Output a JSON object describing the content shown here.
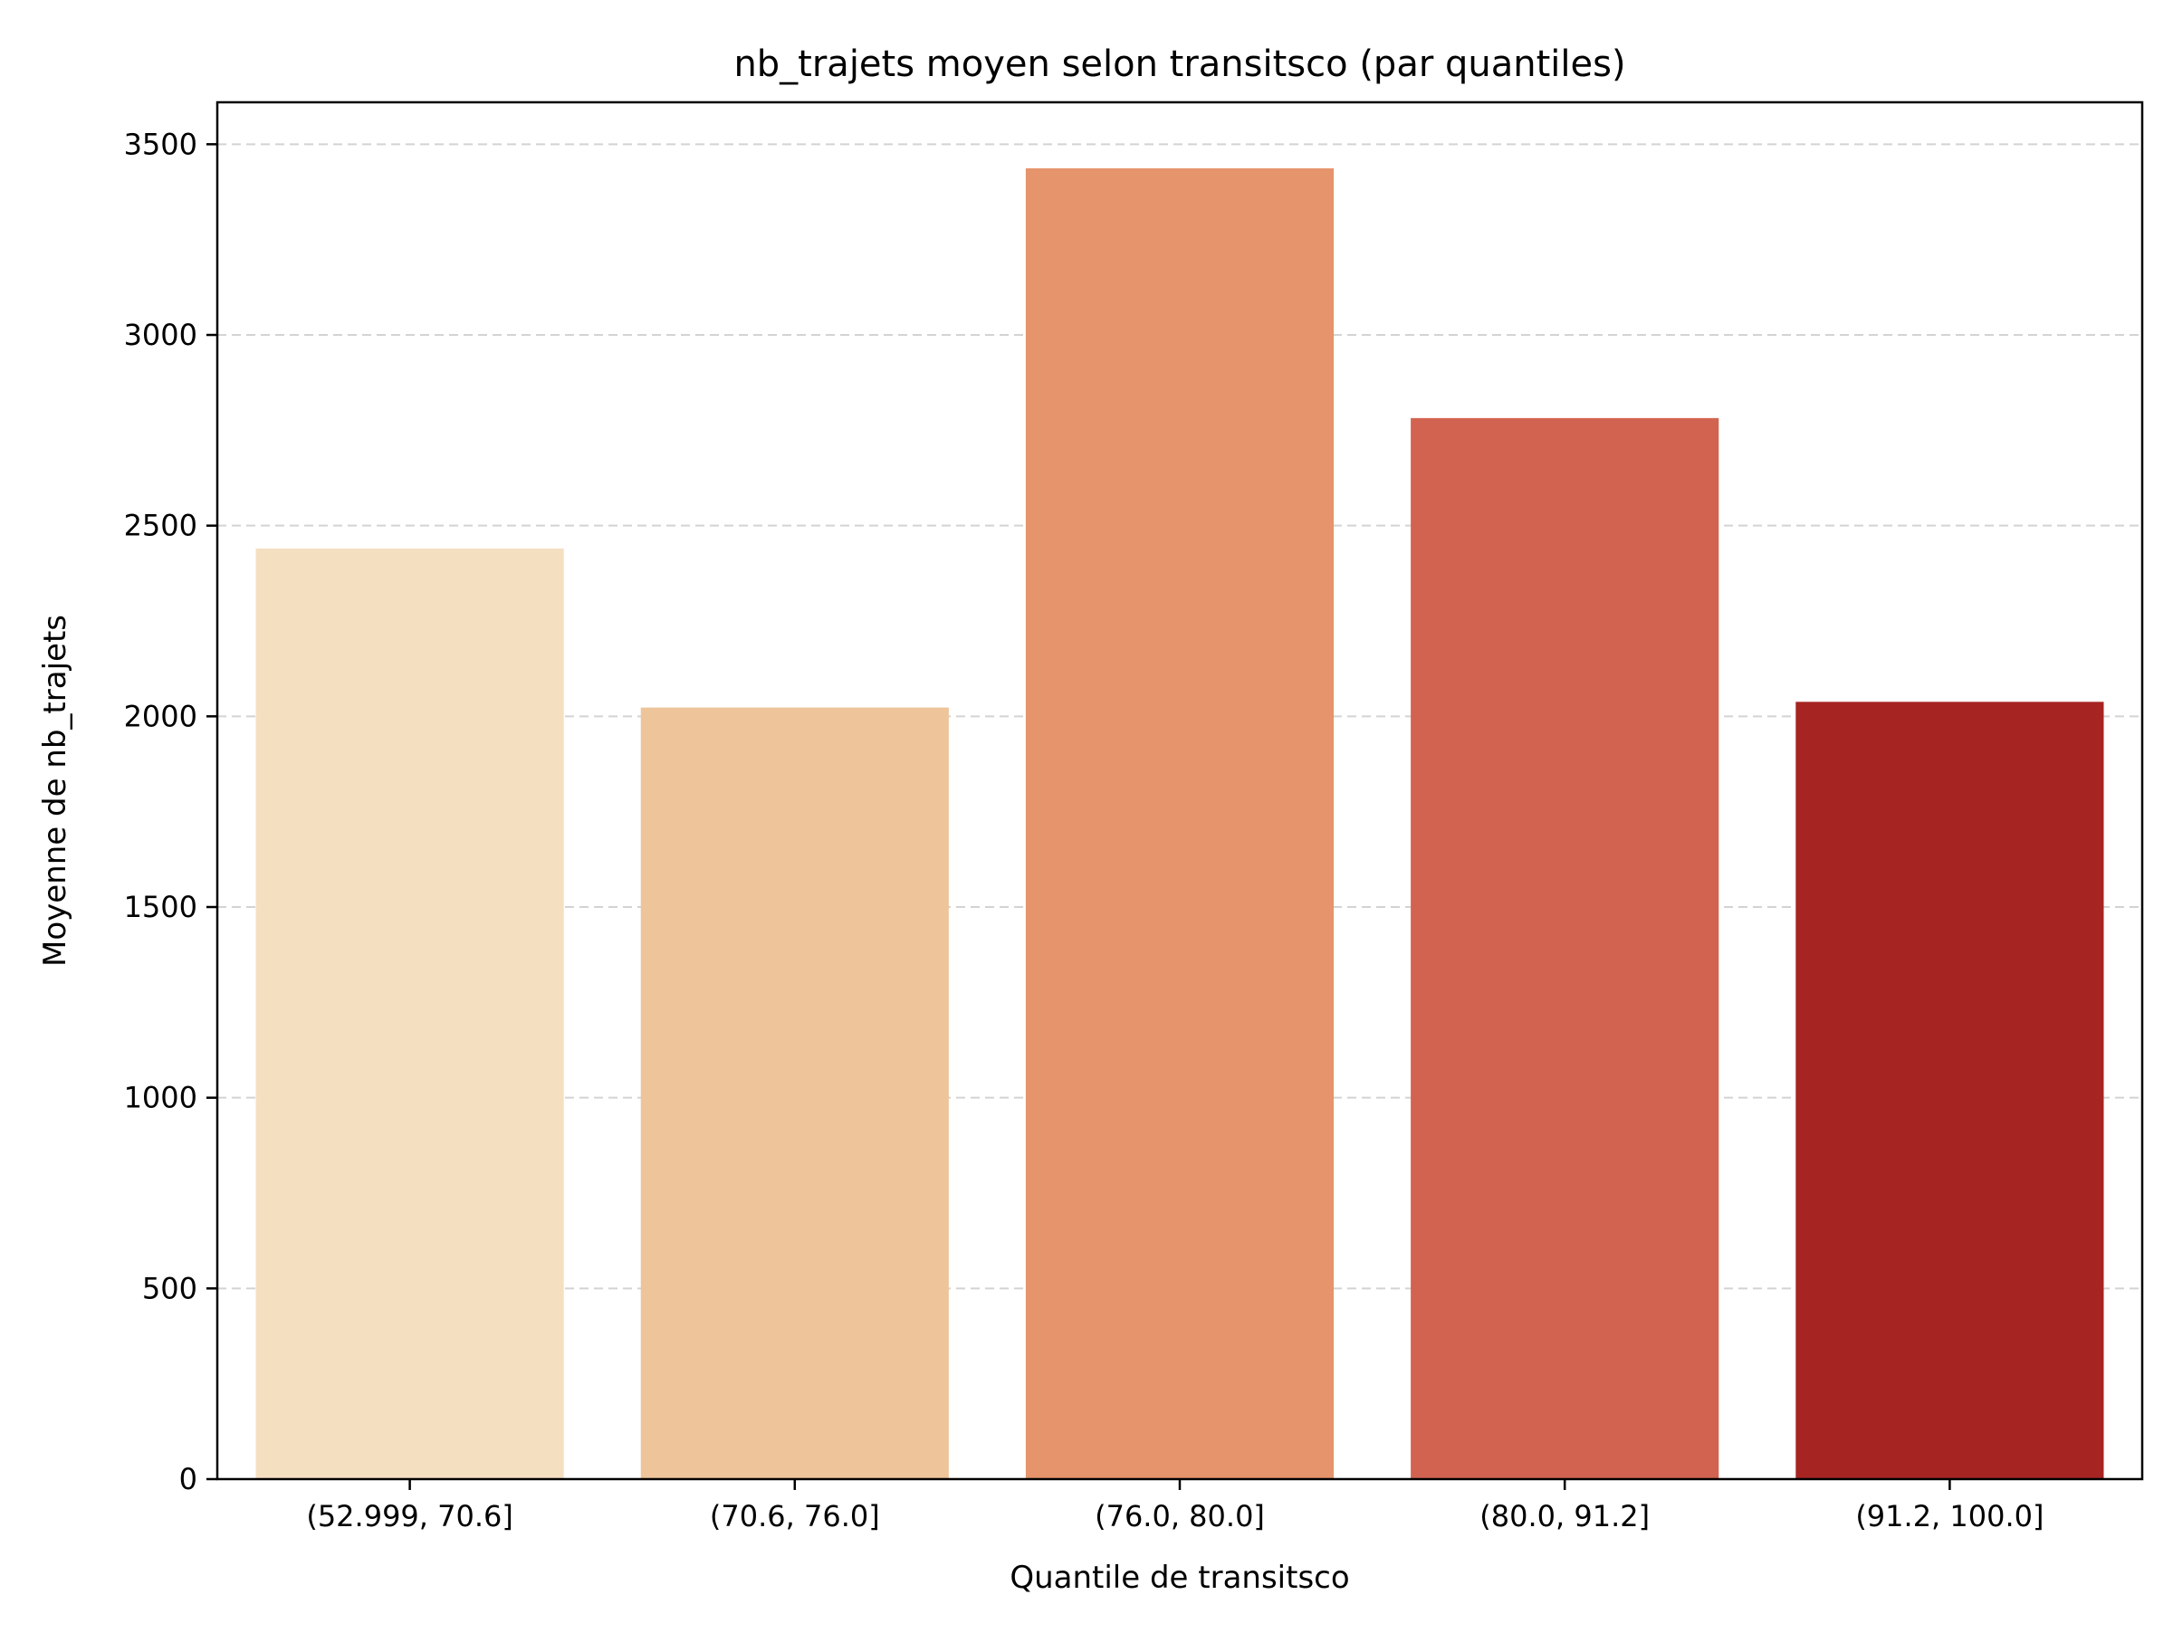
{
  "chart_data": {
    "type": "bar",
    "title": "nb_trajets moyen selon transitsco (par quantiles)",
    "xlabel": "Quantile de transitsco",
    "ylabel": "Moyenne de nb_trajets",
    "categories": [
      "(52.999, 70.6]",
      "(70.6, 76.0]",
      "(76.0, 80.0]",
      "(80.0, 91.2]",
      "(91.2, 100.0]"
    ],
    "values": [
      2440,
      2023,
      3437,
      2782,
      2038
    ],
    "ylim": [
      0,
      3610
    ],
    "yticks": [
      0,
      500,
      1000,
      1500,
      2000,
      2500,
      3000,
      3500
    ],
    "grid": "y-dashed",
    "colors": [
      "#f5dfc1",
      "#eec49a",
      "#e5946c",
      "#d26350",
      "#a62422"
    ]
  }
}
